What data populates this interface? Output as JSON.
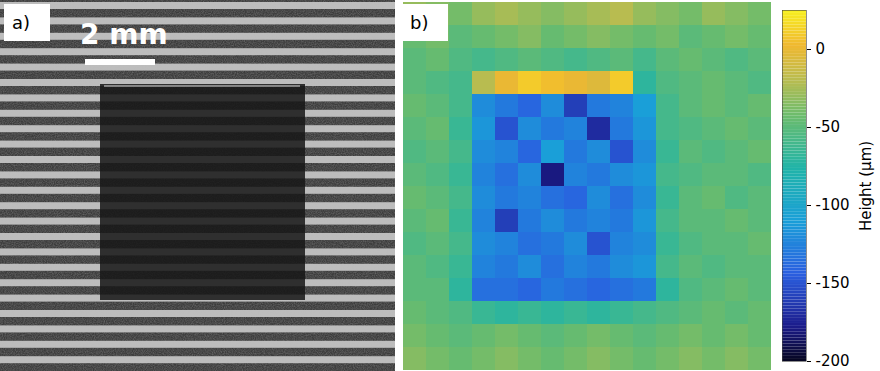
{
  "chart_data": [
    {
      "type": "image",
      "panel_label": "a)",
      "scale_bar_label": "2 mm"
    },
    {
      "type": "heatmap",
      "panel_label": "b)",
      "cells": [
        [
          -30,
          -35,
          -40,
          -30,
          -25,
          -30,
          -35,
          -30,
          -25,
          -20,
          -30,
          -35,
          -40,
          -30,
          -35,
          -40
        ],
        [
          -45,
          -40,
          -50,
          -45,
          -40,
          -35,
          -45,
          -40,
          -35,
          -40,
          -45,
          -40,
          -50,
          -45,
          -40,
          -45
        ],
        [
          -50,
          -45,
          -55,
          -60,
          -55,
          -50,
          -55,
          -60,
          -55,
          -50,
          -60,
          -50,
          -45,
          -50,
          -55,
          -50
        ],
        [
          -50,
          -55,
          -60,
          -20,
          0,
          10,
          5,
          0,
          -5,
          10,
          -70,
          -55,
          -50,
          -45,
          -50,
          -55
        ],
        [
          -45,
          -50,
          -60,
          -120,
          -130,
          -140,
          -120,
          -160,
          -130,
          -125,
          -110,
          -60,
          -50,
          -45,
          -50,
          -45
        ],
        [
          -50,
          -45,
          -65,
          -115,
          -150,
          -120,
          -130,
          -125,
          -170,
          -130,
          -115,
          -60,
          -55,
          -50,
          -45,
          -50
        ],
        [
          -55,
          -50,
          -60,
          -120,
          -125,
          -140,
          -110,
          -130,
          -120,
          -150,
          -120,
          -65,
          -50,
          -55,
          -50,
          -45
        ],
        [
          -50,
          -55,
          -65,
          -125,
          -135,
          -120,
          -180,
          -125,
          -130,
          -120,
          -115,
          -60,
          -55,
          -50,
          -50,
          -55
        ],
        [
          -45,
          -50,
          -60,
          -120,
          -130,
          -125,
          -135,
          -140,
          -120,
          -135,
          -120,
          -65,
          -50,
          -45,
          -55,
          -50
        ],
        [
          -50,
          -45,
          -65,
          -125,
          -160,
          -130,
          -120,
          -130,
          -125,
          -130,
          -115,
          -60,
          -50,
          -50,
          -45,
          -50
        ],
        [
          -55,
          -50,
          -60,
          -120,
          -125,
          -135,
          -130,
          -120,
          -150,
          -125,
          -120,
          -65,
          -55,
          -50,
          -50,
          -45
        ],
        [
          -50,
          -55,
          -65,
          -125,
          -130,
          -120,
          -135,
          -125,
          -130,
          -120,
          -115,
          -60,
          -50,
          -55,
          -50,
          -50
        ],
        [
          -50,
          -50,
          -70,
          -135,
          -135,
          -140,
          -130,
          -135,
          -140,
          -135,
          -130,
          -70,
          -55,
          -50,
          -45,
          -50
        ],
        [
          -45,
          -50,
          -55,
          -65,
          -70,
          -65,
          -70,
          -65,
          -70,
          -65,
          -60,
          -55,
          -50,
          -45,
          -50,
          -45
        ],
        [
          -40,
          -45,
          -50,
          -45,
          -40,
          -45,
          -50,
          -45,
          -40,
          -45,
          -50,
          -45,
          -40,
          -45,
          -40,
          -45
        ],
        [
          -35,
          -40,
          -45,
          -40,
          -35,
          -40,
          -45,
          -40,
          -35,
          -40,
          -45,
          -40,
          -35,
          -40,
          -35,
          -40
        ]
      ],
      "colorbar": {
        "label": "Height (µm)",
        "range": [
          -200,
          25
        ],
        "ticks": [
          0,
          -50,
          -100,
          -150,
          -200
        ]
      }
    }
  ]
}
